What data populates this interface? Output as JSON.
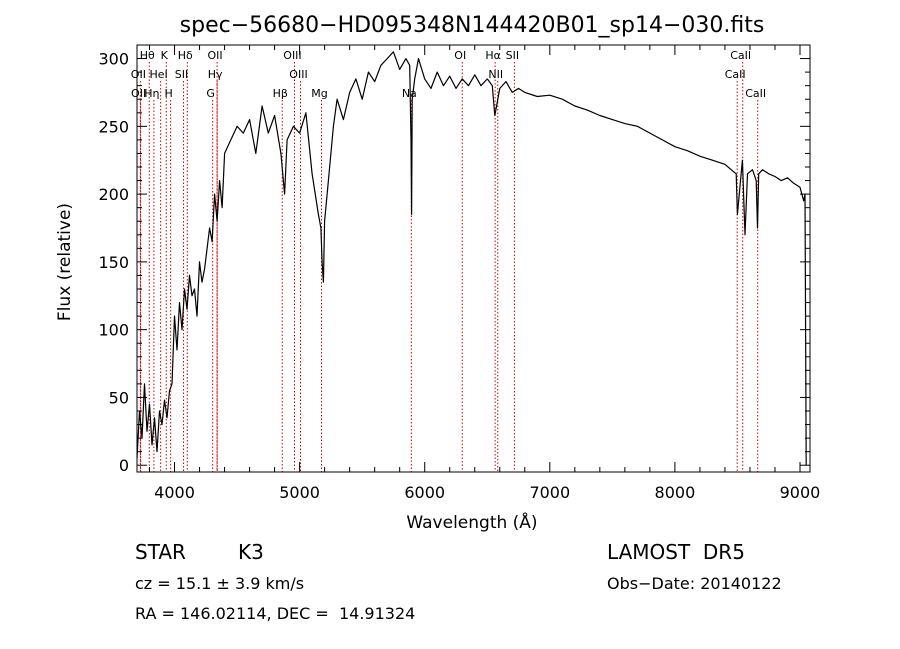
{
  "chart_data": {
    "type": "line",
    "title": "spec−56680−HD095348N144420B01_sp14−030.fits",
    "xlabel": "Wavelength (Å)",
    "ylabel": "Flux (relative)",
    "xlim": [
      3700,
      9080
    ],
    "ylim": [
      -5,
      310
    ],
    "x_ticks": [
      4000,
      5000,
      6000,
      7000,
      8000,
      9000
    ],
    "y_ticks": [
      0,
      50,
      100,
      150,
      200,
      250,
      300
    ],
    "grid": false,
    "series": [
      {
        "x": [
          3700,
          3720,
          3740,
          3760,
          3780,
          3800,
          3820,
          3840,
          3860,
          3880,
          3900,
          3920,
          3940,
          3960,
          3980,
          4000,
          4020,
          4040,
          4060,
          4080,
          4100,
          4120,
          4140,
          4160,
          4180,
          4200,
          4220,
          4240,
          4260,
          4280,
          4300,
          4320,
          4340,
          4360,
          4380,
          4400,
          4450,
          4500,
          4550,
          4600,
          4650,
          4700,
          4750,
          4800,
          4850,
          4880,
          4900,
          4950,
          5000,
          5050,
          5100,
          5150,
          5170,
          5180,
          5190,
          5200,
          5230,
          5270,
          5300,
          5350,
          5400,
          5450,
          5500,
          5550,
          5600,
          5650,
          5700,
          5750,
          5800,
          5850,
          5880,
          5890,
          5895,
          5900,
          5920,
          5950,
          6000,
          6050,
          6100,
          6150,
          6200,
          6250,
          6300,
          6350,
          6400,
          6450,
          6500,
          6540,
          6560,
          6575,
          6600,
          6650,
          6700,
          6750,
          6800,
          6900,
          7000,
          7100,
          7200,
          7300,
          7400,
          7500,
          7600,
          7700,
          7800,
          7900,
          8000,
          8100,
          8200,
          8300,
          8400,
          8450,
          8490,
          8500,
          8540,
          8560,
          8580,
          8620,
          8650,
          8660,
          8670,
          8700,
          8750,
          8800,
          8850,
          8900,
          8950,
          9000,
          9030,
          9040,
          9050
        ],
        "y": [
          5,
          40,
          20,
          60,
          25,
          45,
          15,
          35,
          10,
          40,
          30,
          48,
          35,
          55,
          60,
          110,
          85,
          120,
          100,
          130,
          115,
          140,
          125,
          130,
          110,
          150,
          135,
          145,
          160,
          175,
          165,
          200,
          180,
          210,
          190,
          230,
          240,
          250,
          245,
          255,
          230,
          265,
          245,
          258,
          230,
          200,
          240,
          250,
          245,
          260,
          215,
          185,
          175,
          150,
          135,
          180,
          210,
          250,
          270,
          255,
          275,
          285,
          270,
          290,
          283,
          295,
          300,
          305,
          292,
          300,
          295,
          240,
          185,
          270,
          285,
          300,
          285,
          278,
          290,
          280,
          287,
          278,
          285,
          280,
          288,
          280,
          285,
          280,
          258,
          265,
          278,
          283,
          275,
          278,
          275,
          272,
          273,
          270,
          265,
          262,
          258,
          255,
          252,
          250,
          245,
          240,
          235,
          232,
          228,
          225,
          222,
          218,
          215,
          185,
          225,
          170,
          215,
          218,
          210,
          175,
          215,
          218,
          215,
          213,
          210,
          212,
          208,
          205,
          195,
          200,
          0
        ]
      }
    ],
    "line_markers": [
      {
        "label": "Hθ",
        "x": 3798
      },
      {
        "label": "K",
        "x": 3934
      },
      {
        "label": "Hδ",
        "x": 4102
      },
      {
        "label": "OII",
        "x": 4340
      },
      {
        "label": "OIII",
        "x": 4959
      },
      {
        "label": "OI",
        "x": 6300
      },
      {
        "label": "Hα",
        "x": 6563
      },
      {
        "label": "SII",
        "x": 6717
      },
      {
        "label": "CaII",
        "x": 8542
      },
      {
        "label": "OII",
        "x": 3727
      },
      {
        "label": "HeI",
        "x": 3889
      },
      {
        "label": "SII",
        "x": 4072
      },
      {
        "label": "Hγ",
        "x": 4341
      },
      {
        "label": "OIII",
        "x": 5007
      },
      {
        "label": "NII",
        "x": 6584
      },
      {
        "label": "CaII",
        "x": 8498
      },
      {
        "label": "OII",
        "x": 3729
      },
      {
        "label": "Hη",
        "x": 3835
      },
      {
        "label": "H",
        "x": 3969
      },
      {
        "label": "G",
        "x": 4305
      },
      {
        "label": "Hβ",
        "x": 4861
      },
      {
        "label": "Mg",
        "x": 5175
      },
      {
        "label": "Na",
        "x": 5893
      },
      {
        "label": "CaII",
        "x": 8662
      }
    ],
    "line_marker_color": "#cc0000"
  },
  "info": {
    "object_class": "STAR",
    "subclass": "K3",
    "survey": "LAMOST  DR5",
    "cz": "cz = 15.1 ± 3.9 km/s",
    "obs_date": "Obs−Date: 20140122",
    "radec": "RA = 146.02114, DEC =  14.91324"
  }
}
